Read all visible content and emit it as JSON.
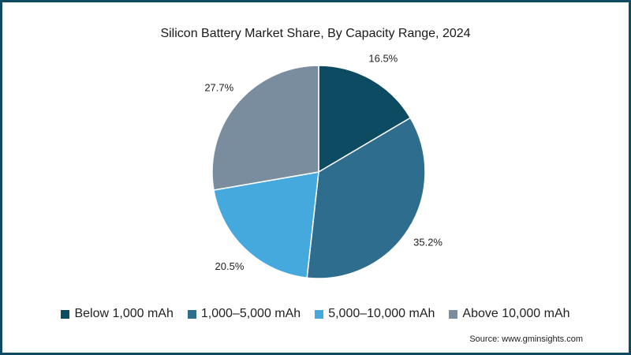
{
  "chart_data": {
    "type": "pie",
    "title": "Silicon Battery Market Share, By Capacity Range, 2024",
    "categories": [
      "Below 1,000 mAh",
      "1,000–5,000 mAh",
      "5,000–10,000 mAh",
      "Above 10,000 mAh"
    ],
    "values": [
      16.5,
      35.2,
      20.5,
      27.7
    ],
    "labels": [
      "16.5%",
      "35.2%",
      "20.5%",
      "27.7%"
    ],
    "colors": [
      "#0d4b63",
      "#2e6d8e",
      "#46a9dd",
      "#7a8d9e"
    ],
    "legend_position": "bottom",
    "source": "Source: www.gminsights.com"
  }
}
